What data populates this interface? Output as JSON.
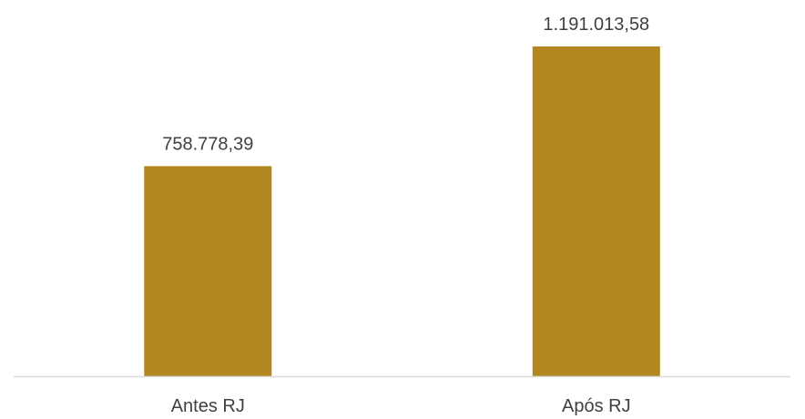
{
  "chart_data": {
    "type": "bar",
    "categories": [
      "Antes RJ",
      "Após RJ"
    ],
    "values": [
      758778.39,
      1191013.58
    ],
    "value_labels": [
      "758.778,39",
      "1.191.013,58"
    ],
    "ylim": [
      0,
      1191013.58
    ],
    "grid": false,
    "legend": "none",
    "bar_color": "#B3871F",
    "axis_color": "#D9D9D9"
  }
}
